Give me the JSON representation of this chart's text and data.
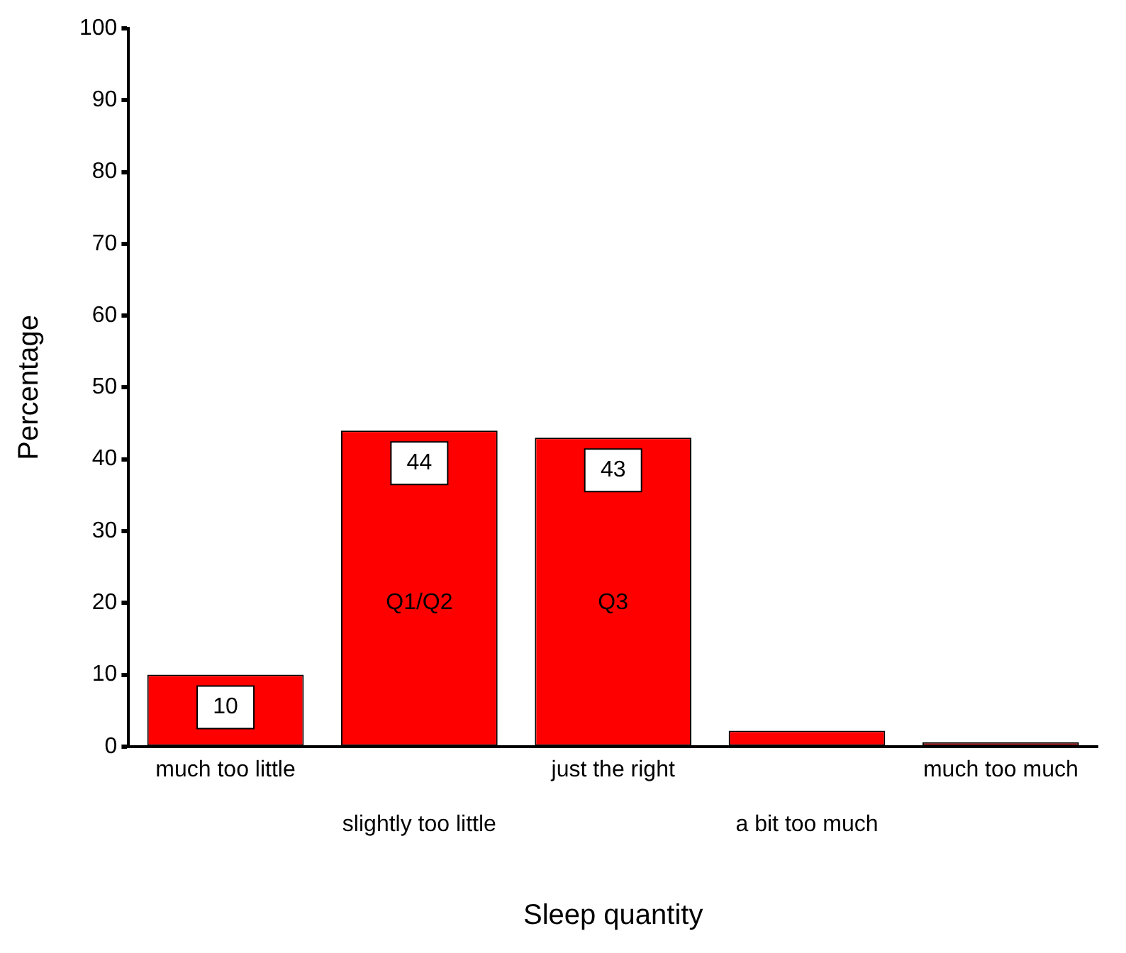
{
  "chart_data": {
    "type": "bar",
    "xlabel": "Sleep quantity",
    "ylabel": "Percentage",
    "categories": [
      "much too little",
      "slightly too little",
      "just the right",
      "a bit too much",
      "much too much"
    ],
    "values": [
      10,
      44,
      43,
      2.2,
      0.6
    ],
    "value_labels": [
      "10",
      "44",
      "43",
      null,
      null
    ],
    "color": "#ff0000",
    "ylim": [
      0,
      100
    ],
    "yticks": [
      0,
      10,
      20,
      30,
      40,
      50,
      60,
      70,
      80,
      90,
      100
    ],
    "grid": false,
    "legend": false,
    "annotations": [
      "Q1/Q2",
      "Q3"
    ]
  }
}
